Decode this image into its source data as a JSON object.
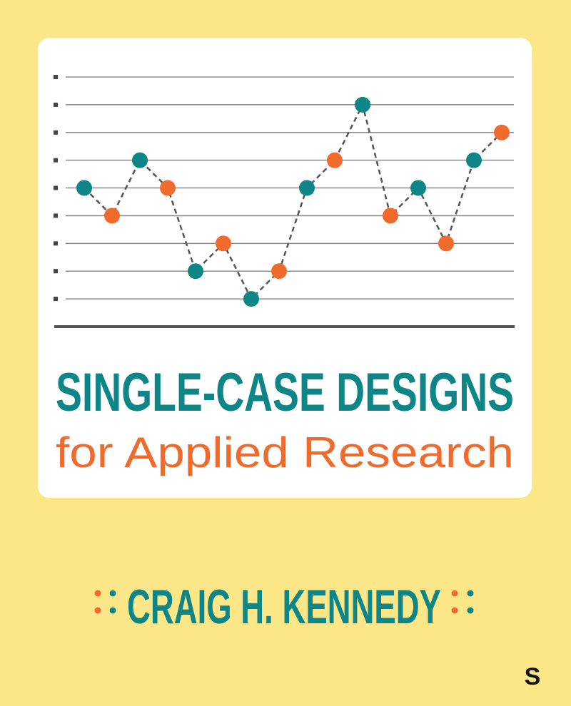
{
  "cover": {
    "title": "SINGLE-CASE DESIGNS",
    "subtitle": "for Applied Research",
    "author": "CRAIG H. KENNEDY",
    "publisher": "S"
  },
  "chart_data": {
    "type": "line",
    "x": [
      1,
      2,
      3,
      4,
      5,
      6,
      7,
      8,
      9,
      10,
      11,
      12,
      13,
      14,
      15,
      16
    ],
    "series": [
      {
        "values": [
          5,
          4,
          6,
          5,
          2,
          3,
          1,
          2,
          5,
          6,
          8,
          4,
          5,
          3,
          6,
          7
        ],
        "color": "#555555",
        "point_colors": [
          "#0e8586",
          "#ef6a2b",
          "#0e8586",
          "#ef6a2b",
          "#0e8586",
          "#ef6a2b",
          "#0e8586",
          "#ef6a2b",
          "#0e8586",
          "#ef6a2b",
          "#0e8586",
          "#ef6a2b",
          "#0e8586",
          "#ef6a2b",
          "#0e8586",
          "#ef6a2b"
        ]
      }
    ],
    "xlim": [
      0,
      16.5
    ],
    "ylim": [
      0,
      9
    ],
    "yticks": [
      1,
      2,
      3,
      4,
      5,
      6,
      7,
      8,
      9
    ],
    "grid": true
  }
}
